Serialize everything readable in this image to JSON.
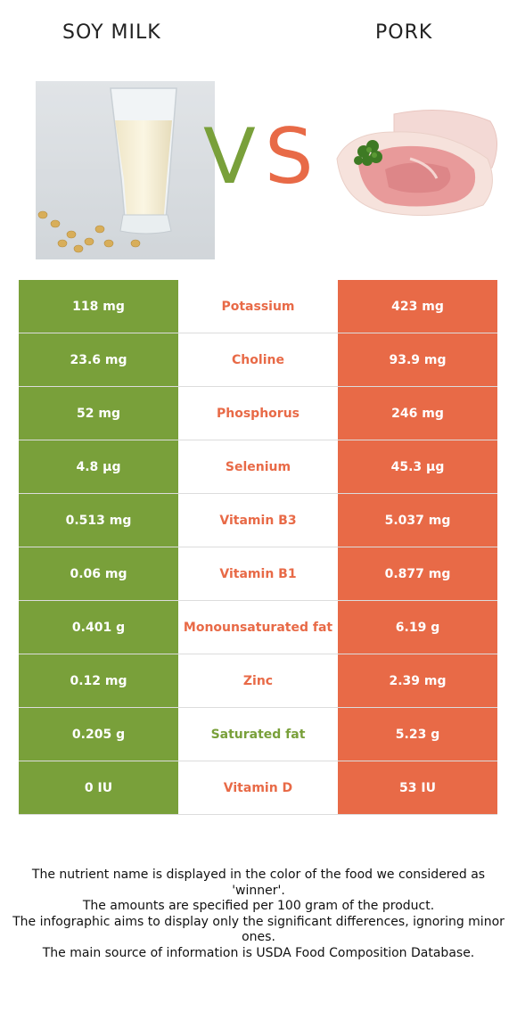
{
  "header": {
    "left_food": "SOY MILK",
    "right_food": "PORK",
    "vs_v": "V",
    "vs_s": "S"
  },
  "colors": {
    "left": "#79a03a",
    "right": "#e86a47"
  },
  "rows": [
    {
      "left": "118 mg",
      "nutrient": "Potassium",
      "right": "423 mg",
      "winner": "right"
    },
    {
      "left": "23.6 mg",
      "nutrient": "Choline",
      "right": "93.9 mg",
      "winner": "right"
    },
    {
      "left": "52 mg",
      "nutrient": "Phosphorus",
      "right": "246 mg",
      "winner": "right"
    },
    {
      "left": "4.8 µg",
      "nutrient": "Selenium",
      "right": "45.3 µg",
      "winner": "right"
    },
    {
      "left": "0.513 mg",
      "nutrient": "Vitamin B3",
      "right": "5.037 mg",
      "winner": "right"
    },
    {
      "left": "0.06 mg",
      "nutrient": "Vitamin B1",
      "right": "0.877 mg",
      "winner": "right"
    },
    {
      "left": "0.401 g",
      "nutrient": "Monounsaturated fat",
      "right": "6.19 g",
      "winner": "right"
    },
    {
      "left": "0.12 mg",
      "nutrient": "Zinc",
      "right": "2.39 mg",
      "winner": "right"
    },
    {
      "left": "0.205 g",
      "nutrient": "Saturated fat",
      "right": "5.23 g",
      "winner": "left"
    },
    {
      "left": "0 IU",
      "nutrient": "Vitamin D",
      "right": "53 IU",
      "winner": "right"
    }
  ],
  "footer": {
    "line1": "The nutrient name is displayed in the color of the food we considered as 'winner'.",
    "line2": "The amounts are specified per 100 gram of the product.",
    "line3": "The infographic aims to display only the significant differences, ignoring minor ones.",
    "line4": "The main source of information is USDA Food Composition Database."
  }
}
